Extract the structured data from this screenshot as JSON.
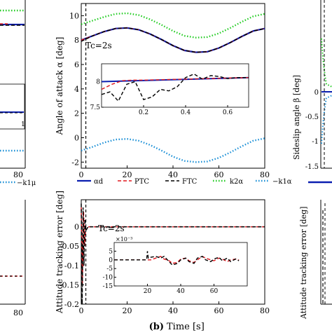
{
  "figure": {
    "bottom_label_prefix": "(b)",
    "bottom_label_text": "Time [s]",
    "legend": [
      {
        "label": "αd",
        "color": "#0b1fb0",
        "dash": "solid"
      },
      {
        "label": "PTC",
        "color": "#e0191f",
        "dash": "dashed"
      },
      {
        "label": "FTC",
        "color": "#000000",
        "dash": "dashed"
      },
      {
        "label": "k2α",
        "color": "#22cc22",
        "dash": "dotted"
      },
      {
        "label": "−k1α",
        "color": "#1a8fd6",
        "dash": "dotted"
      }
    ],
    "left_legend_fragment": "−k1μ",
    "right_legend_fragment_color": "#0b1fb0",
    "left_tick_labels": {
      "top_x_80": "80",
      "bottom_x_80": "80",
      "inset_x_1": "1"
    },
    "right_panel": {
      "ylabel_top": "Sideslip angle β [deg]",
      "ylabel_bottom": "Attitude tracking error [deg]",
      "yticks": [
        "0",
        "-0.5",
        "-1",
        "-1.5"
      ]
    }
  },
  "chart_data": [
    {
      "type": "line",
      "id": "angle-of-attack",
      "title": "",
      "xlabel": "",
      "ylabel": "Angle of attack α [deg]",
      "annotation": "Tc=2s",
      "xlim": [
        0,
        80
      ],
      "ylim": [
        -2.5,
        11
      ],
      "xticks": [
        "0",
        "20",
        "40",
        "60",
        "80"
      ],
      "yticks": [
        "-2",
        "0",
        "2",
        "4",
        "6",
        "8",
        "10"
      ],
      "vline_x": 2,
      "series": [
        {
          "name": "αd",
          "color": "#0b1fb0",
          "dash": "solid",
          "x": [
            0,
            5,
            10,
            15,
            20,
            25,
            30,
            35,
            40,
            45,
            50,
            55,
            60,
            65,
            70,
            75,
            80
          ],
          "values": [
            8,
            8.35,
            8.7,
            8.95,
            9.0,
            8.85,
            8.5,
            8.05,
            7.55,
            7.15,
            7.0,
            7.05,
            7.35,
            7.8,
            8.3,
            8.75,
            8.95
          ]
        },
        {
          "name": "PTC",
          "color": "#e0191f",
          "dash": "dashed",
          "x": [
            0,
            5,
            10,
            15,
            20,
            25,
            30,
            35,
            40,
            45,
            50,
            55,
            60,
            65,
            70,
            75,
            80
          ],
          "values": [
            8,
            8.35,
            8.7,
            8.95,
            9.0,
            8.85,
            8.5,
            8.05,
            7.55,
            7.15,
            7.0,
            7.05,
            7.35,
            7.8,
            8.3,
            8.75,
            8.95
          ]
        },
        {
          "name": "FTC",
          "color": "#000000",
          "dash": "dashed",
          "x": [
            0,
            5,
            10,
            15,
            20,
            25,
            30,
            35,
            40,
            45,
            50,
            55,
            60,
            65,
            70,
            75,
            80
          ],
          "values": [
            7.9,
            8.35,
            8.7,
            8.95,
            9.0,
            8.85,
            8.5,
            8.05,
            7.55,
            7.15,
            7.0,
            7.05,
            7.35,
            7.8,
            8.3,
            8.75,
            8.95
          ]
        },
        {
          "name": "k2α",
          "color": "#22cc22",
          "dash": "dotted",
          "x": [
            0,
            5,
            10,
            15,
            20,
            25,
            30,
            35,
            40,
            45,
            50,
            55,
            60,
            65,
            70,
            75,
            80
          ],
          "values": [
            9.3,
            9.6,
            9.9,
            10.15,
            10.2,
            10.05,
            9.7,
            9.25,
            8.75,
            8.35,
            8.2,
            8.25,
            8.55,
            9.0,
            9.5,
            9.95,
            10.15
          ]
        },
        {
          "name": "−k1α",
          "color": "#1a8fd6",
          "dash": "dotted",
          "x": [
            0,
            5,
            10,
            15,
            20,
            25,
            30,
            35,
            40,
            45,
            50,
            55,
            60,
            65,
            70,
            75,
            80
          ],
          "values": [
            -1.05,
            -0.75,
            -0.4,
            -0.15,
            -0.1,
            -0.25,
            -0.6,
            -1.05,
            -1.55,
            -1.9,
            -2.0,
            -1.95,
            -1.65,
            -1.2,
            -0.7,
            -0.25,
            -0.05
          ]
        }
      ],
      "inset": {
        "xlim": [
          0,
          0.7
        ],
        "ylim": [
          7.5,
          8.35
        ],
        "xticks": [
          "0.2",
          "0.4",
          "0.6"
        ],
        "yticks": [
          "8",
          "7.5"
        ],
        "series": [
          {
            "name": "αd",
            "color": "#0b1fb0",
            "dash": "solid",
            "x": [
              0,
              0.7
            ],
            "values": [
              8.0,
              8.08
            ]
          },
          {
            "name": "PTC",
            "color": "#e0191f",
            "dash": "dashed",
            "x": [
              0,
              0.05,
              0.1,
              0.15,
              0.2,
              0.3,
              0.4,
              0.5,
              0.6,
              0.7
            ],
            "values": [
              7.85,
              7.95,
              8.02,
              8.03,
              8.03,
              8.04,
              8.05,
              8.06,
              8.07,
              8.08
            ]
          },
          {
            "name": "FTC",
            "color": "#000000",
            "dash": "dashed",
            "x": [
              0,
              0.04,
              0.08,
              0.12,
              0.16,
              0.2,
              0.24,
              0.28,
              0.32,
              0.36,
              0.4,
              0.44,
              0.48,
              0.52,
              0.56,
              0.6,
              0.64,
              0.7
            ],
            "values": [
              7.75,
              7.8,
              7.62,
              7.95,
              8.0,
              7.65,
              7.7,
              7.85,
              7.82,
              7.9,
              8.08,
              8.15,
              8.05,
              8.12,
              8.1,
              8.06,
              8.08,
              8.08
            ]
          }
        ]
      }
    },
    {
      "type": "line",
      "id": "attitude-tracking-error",
      "title": "",
      "xlabel": "Time [s]",
      "ylabel": "Attitude tracking error [deg]",
      "annotation": "Tc=2s",
      "xlim": [
        0,
        80
      ],
      "ylim": [
        -0.2,
        0.07
      ],
      "xticks": [
        "0",
        "20",
        "40",
        "60",
        "80"
      ],
      "yticks": [
        "0",
        "-0.05",
        "-0.1",
        "-0.15",
        "-0.2"
      ],
      "vline_x": 2,
      "series": [
        {
          "name": "PTC",
          "color": "#e0191f",
          "dash": "dashed",
          "x": [
            0,
            0.5,
            1,
            1.5,
            2,
            3,
            10,
            20,
            30,
            40,
            50,
            60,
            70,
            80
          ],
          "values": [
            0.05,
            -0.15,
            0.04,
            -0.05,
            0,
            0,
            0,
            0,
            0,
            0,
            0,
            0,
            0,
            0
          ]
        },
        {
          "name": "FTC",
          "color": "#000000",
          "dash": "dashed",
          "x": [
            0,
            0.4,
            0.8,
            1.2,
            1.6,
            2,
            3,
            10,
            20,
            30,
            40,
            50,
            60,
            70,
            80
          ],
          "values": [
            0.06,
            -0.2,
            0.05,
            -0.1,
            0.02,
            -0.01,
            0,
            0,
            0,
            0,
            0,
            0,
            0,
            0,
            0
          ]
        }
      ],
      "inset": {
        "exponent_label": "×10⁻³",
        "xlim": [
          0,
          80
        ],
        "ylim": [
          -15,
          10
        ],
        "xticks": [
          "20",
          "40",
          "60"
        ],
        "yticks": [
          "5",
          "0",
          "-5",
          "-10",
          "-15"
        ],
        "series": [
          {
            "name": "PTC",
            "color": "#e0191f",
            "dash": "dashed",
            "x": [
              0,
              5,
              10,
              15,
              20,
              22,
              25,
              28,
              30,
              33,
              35,
              38,
              40,
              43,
              45,
              48,
              50,
              53,
              55,
              58,
              60,
              63,
              65,
              68,
              70,
              73,
              75
            ],
            "values": [
              0,
              0,
              0,
              0,
              0,
              0,
              1,
              2,
              0.5,
              -0.5,
              -2,
              -1.5,
              0.5,
              1,
              -0.5,
              -1.5,
              0,
              2,
              1,
              0,
              -0.5,
              1,
              0.5,
              -1,
              0,
              0.5,
              0
            ]
          },
          {
            "name": "FTC",
            "color": "#000000",
            "dash": "dashed",
            "x": [
              0,
              5,
              10,
              15,
              19.5,
              20,
              20.5,
              22,
              25,
              28,
              30,
              33,
              35,
              38,
              40,
              43,
              45,
              48,
              50,
              53,
              55,
              58,
              60,
              63,
              65,
              68,
              70,
              73,
              75
            ],
            "values": [
              0,
              0,
              0,
              0,
              0,
              5,
              1,
              1.5,
              2,
              1,
              2,
              -1,
              -3,
              -2,
              0,
              1,
              -1,
              -2,
              1,
              2,
              0,
              -1,
              0.5,
              1.5,
              -0.5,
              1,
              -1,
              0.5,
              -0.5
            ]
          }
        ]
      }
    }
  ]
}
